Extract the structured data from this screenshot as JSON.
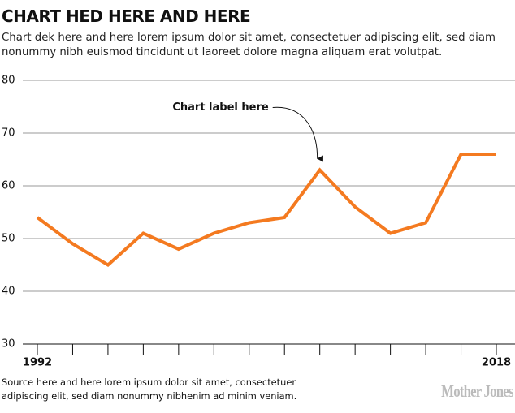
{
  "chart_data": {
    "type": "line",
    "title": "CHART HED HERE AND HERE",
    "subtitle": "Chart dek here and here lorem ipsum dolor sit amet, consectetuer adipiscing elit, sed diam nonummy nibh euismod tincidunt ut laoreet dolore magna aliquam erat volutpat.",
    "x": [
      1992,
      1994,
      1996,
      1998,
      2000,
      2002,
      2004,
      2006,
      2008,
      2010,
      2012,
      2014,
      2016,
      2018
    ],
    "series": [
      {
        "color": "#f47a20",
        "values": [
          54,
          49,
          45,
          51,
          48,
          51,
          53,
          54,
          63,
          56,
          51,
          53,
          66,
          66
        ]
      }
    ],
    "xlim": [
      1992,
      2018
    ],
    "xticks": [
      1992,
      2018
    ],
    "xminorticks": [
      1992,
      1994,
      1996,
      1998,
      2000,
      2002,
      2004,
      2006,
      2008,
      2010,
      2012,
      2014,
      2016,
      2018
    ],
    "ylim": [
      30,
      80
    ],
    "yticks": [
      30,
      40,
      50,
      60,
      70,
      80
    ],
    "grid": true,
    "annotations": [
      {
        "text": "Chart label here",
        "x": 2008,
        "y": 63
      }
    ],
    "source": "Source here and here lorem ipsum dolor sit amet, consectetuer adipiscing elit, sed diam nonummy nibhenim ad minim veniam.",
    "logo": "Mother Jones"
  }
}
